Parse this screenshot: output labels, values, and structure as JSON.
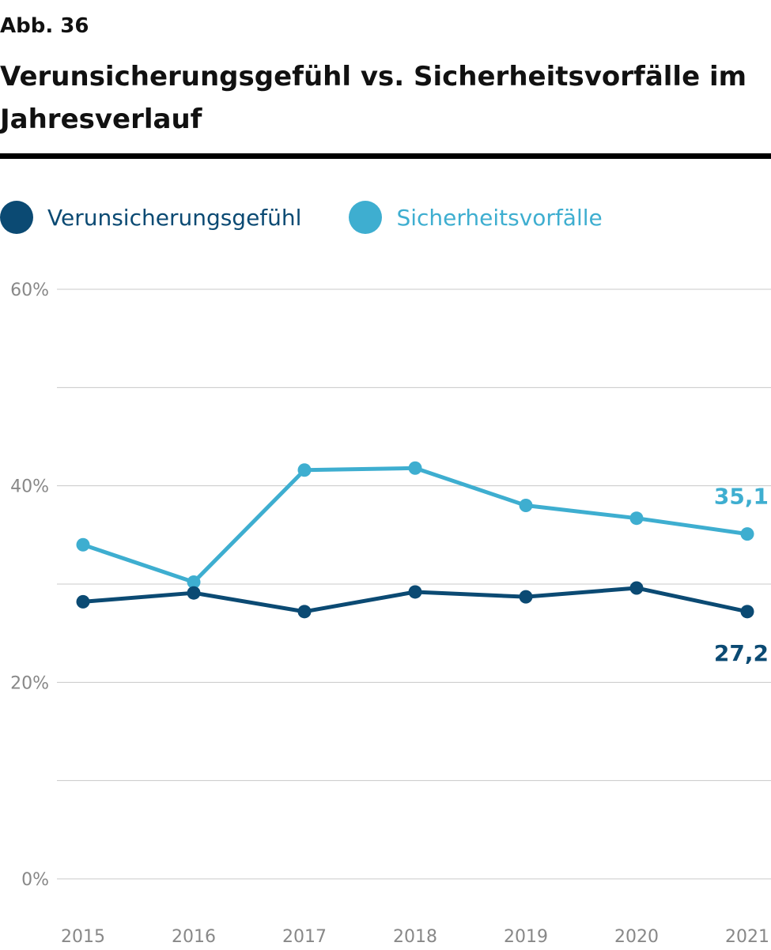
{
  "figure": {
    "label": "Abb. 36",
    "title": "Verunsicherungsgefühl vs. Sicherheitsvorfälle im Jahresverlauf"
  },
  "colors": {
    "dark": "#0b4a73",
    "light": "#3eaed0",
    "grid": "#c8c8c8",
    "tick": "#888888"
  },
  "chart_data": {
    "type": "line",
    "title": "Verunsicherungsgefühl vs. Sicherheitsvorfälle im Jahresverlauf",
    "xlabel": "",
    "ylabel": "",
    "x": [
      "2015",
      "2016",
      "2017",
      "2018",
      "2019",
      "2020",
      "2021"
    ],
    "ylim": [
      0,
      60
    ],
    "yticks": [
      0,
      10,
      20,
      30,
      40,
      50,
      60
    ],
    "ytick_labels": [
      "0%",
      "",
      "20%",
      "",
      "40%",
      "",
      "60%"
    ],
    "grid": true,
    "legend": "top-left",
    "series": [
      {
        "name": "Verunsicherungsgefühl",
        "color": "#0b4a73",
        "values": [
          28.2,
          29.1,
          27.2,
          29.2,
          28.7,
          29.6,
          27.2
        ],
        "end_label": "27,2"
      },
      {
        "name": "Sicherheitsvorfälle",
        "color": "#3eaed0",
        "values": [
          34.0,
          30.2,
          41.6,
          41.8,
          38.0,
          36.7,
          35.1
        ],
        "end_label": "35,1"
      }
    ]
  }
}
